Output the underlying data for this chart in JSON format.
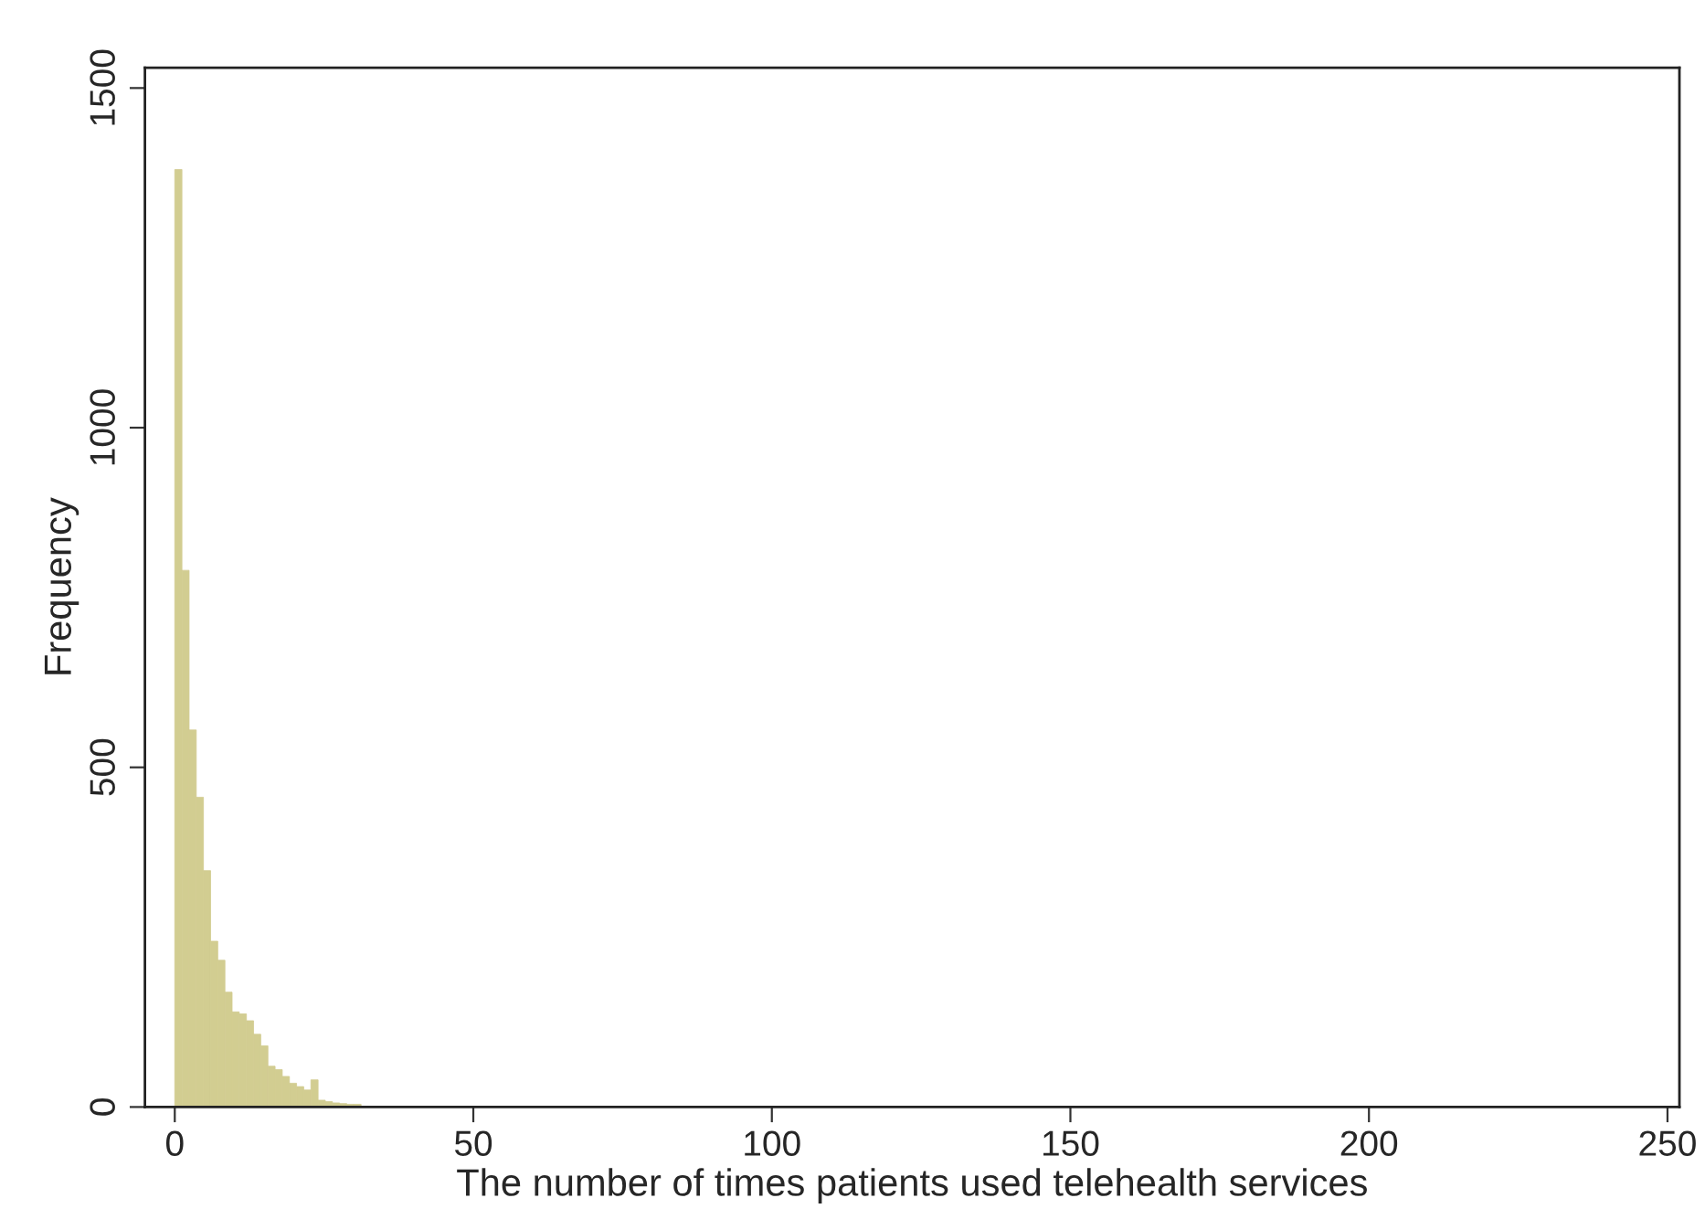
{
  "chart_data": {
    "type": "histogram",
    "xlabel": "The number of times patients used telehealth services",
    "ylabel": "Frequency",
    "bins": [
      0,
      1.2,
      2.4,
      3.6,
      4.8,
      6,
      7.2,
      8.4,
      9.6,
      10.8,
      12,
      13.2,
      14.4,
      15.6,
      16.8,
      18,
      19.2,
      20.4,
      21.6,
      22.8,
      24,
      25.2,
      26.4,
      27.6,
      28.8,
      30,
      31.2,
      32.4,
      33.6,
      34.8,
      36
    ],
    "values": [
      1380,
      790,
      555,
      456,
      348,
      244,
      216,
      169,
      140,
      137,
      127,
      107,
      90,
      60,
      55,
      45,
      35,
      30,
      25,
      40,
      10,
      8,
      6,
      5,
      4,
      4,
      null,
      null,
      null,
      null
    ],
    "color": "#d2cd91",
    "xlim": [
      -5,
      252
    ],
    "ylim": [
      0,
      1530
    ],
    "xticks": [
      0,
      50,
      100,
      150,
      200,
      250
    ],
    "yticks": [
      0,
      500,
      1000,
      1500
    ],
    "grid": false
  }
}
